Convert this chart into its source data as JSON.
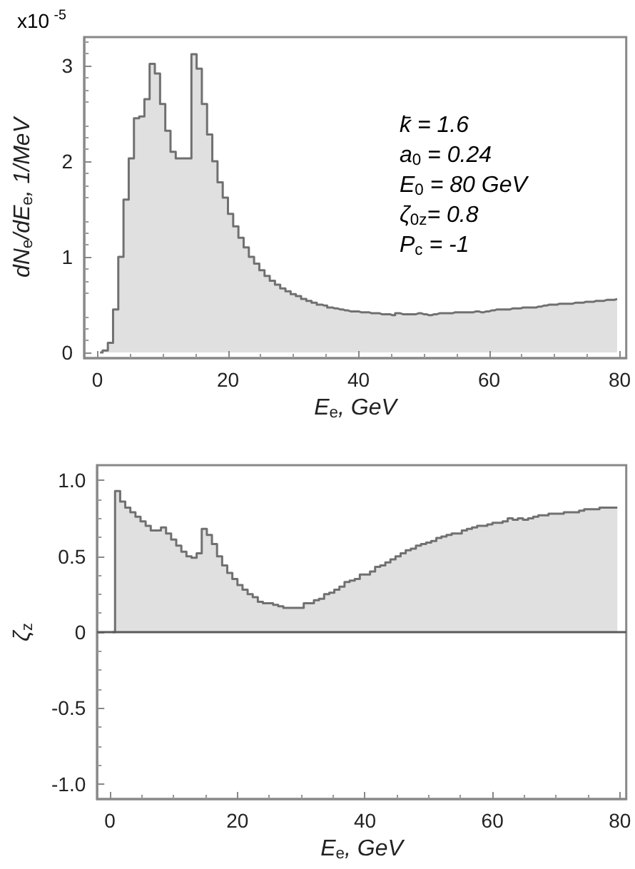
{
  "chart_data": [
    {
      "type": "step",
      "xlabel": "E$_{e}$, GeV",
      "ylabel": "dN$_{e}$/dE$_{e}$, 1/MeV",
      "color": "#707070",
      "annotations": [
        "x10$^{-5}$",
        "k̄ = 1.6",
        "a$_{0}$ = 0.24",
        "E$_{0}$ = 80 GeV",
        "ζ$_{0z}$= 0.8",
        "P$_{c}$ = -1"
      ],
      "x": [
        0.4,
        1.2,
        2,
        2.8,
        3.6,
        4.4,
        5.2,
        6,
        6.8,
        7.6,
        8.4,
        9.2,
        10,
        10.8,
        11.6,
        12.4,
        13.2,
        14,
        14.8,
        15.6,
        16.4,
        17.2,
        18,
        18.8,
        19.6,
        20.4,
        21.2,
        22,
        22.8,
        23.6,
        24.4,
        25.2,
        26,
        26.8,
        27.6,
        28.4,
        29.2,
        30,
        30.8,
        31.6,
        32.4,
        33.2,
        34,
        34.8,
        35.6,
        36.4,
        37.2,
        38,
        38.8,
        39.6,
        40.4,
        41.2,
        42,
        42.8,
        43.6,
        44.4,
        45.2,
        46,
        46.8,
        47.6,
        48.4,
        49.2,
        50,
        50.8,
        51.6,
        52.4,
        53.2,
        54,
        54.8,
        55.6,
        56.4,
        57.2,
        58,
        58.8,
        59.6,
        60.4,
        61.2,
        62,
        62.8,
        63.6,
        64.4,
        65.2,
        66,
        66.8,
        67.6,
        68.4,
        69.2,
        70,
        70.8,
        71.6,
        72.4,
        73.2,
        74,
        74.8,
        75.6,
        76.4,
        77.2,
        78,
        78.8,
        79.6
      ],
      "values": [
        0,
        0.02,
        0.1,
        0.45,
        1.0,
        1.6,
        2.03,
        2.45,
        2.47,
        2.65,
        3.02,
        2.92,
        2.6,
        2.32,
        2.1,
        2.03,
        2.03,
        2.03,
        3.12,
        2.97,
        2.6,
        2.28,
        2.0,
        1.78,
        1.62,
        1.45,
        1.32,
        1.2,
        1.1,
        1.0,
        0.93,
        0.86,
        0.8,
        0.75,
        0.71,
        0.67,
        0.64,
        0.61,
        0.59,
        0.56,
        0.54,
        0.52,
        0.5,
        0.49,
        0.47,
        0.46,
        0.45,
        0.44,
        0.43,
        0.43,
        0.42,
        0.42,
        0.41,
        0.41,
        0.4,
        0.4,
        0.39,
        0.41,
        0.4,
        0.4,
        0.4,
        0.41,
        0.4,
        0.39,
        0.4,
        0.41,
        0.41,
        0.41,
        0.42,
        0.42,
        0.42,
        0.42,
        0.43,
        0.42,
        0.43,
        0.44,
        0.45,
        0.45,
        0.45,
        0.46,
        0.46,
        0.47,
        0.47,
        0.47,
        0.48,
        0.49,
        0.5,
        0.5,
        0.51,
        0.51,
        0.51,
        0.52,
        0.52,
        0.53,
        0.53,
        0.54,
        0.54,
        0.55,
        0.55,
        0.56
      ],
      "xlim": [
        -2,
        81
      ],
      "xticks": [
        0,
        20,
        40,
        60,
        80
      ],
      "ylim": [
        -0.06,
        3.3
      ],
      "yticks": [
        0,
        1,
        2,
        3
      ]
    },
    {
      "type": "step",
      "xlabel": "E$_{e}$, GeV",
      "ylabel": "ζ$_{z}$",
      "color": "#707070",
      "x": [
        0.4,
        1.2,
        2,
        2.8,
        3.6,
        4.4,
        5.2,
        6,
        6.8,
        7.6,
        8.4,
        9.2,
        10,
        10.8,
        11.6,
        12.4,
        13.2,
        14,
        14.8,
        15.6,
        16.4,
        17.2,
        18,
        18.8,
        19.6,
        20.4,
        21.2,
        22,
        22.8,
        23.6,
        24.4,
        25.2,
        26,
        26.8,
        27.6,
        28.4,
        29.2,
        30,
        30.8,
        31.6,
        32.4,
        33.2,
        34,
        34.8,
        35.6,
        36.4,
        37.2,
        38,
        38.8,
        39.6,
        40.4,
        41.2,
        42,
        42.8,
        43.6,
        44.4,
        45.2,
        46,
        46.8,
        47.6,
        48.4,
        49.2,
        50,
        50.8,
        51.6,
        52.4,
        53.2,
        54,
        54.8,
        55.6,
        56.4,
        57.2,
        58,
        58.8,
        59.6,
        60.4,
        61.2,
        62,
        62.8,
        63.6,
        64.4,
        65.2,
        66,
        66.8,
        67.6,
        68.4,
        69.2,
        70,
        70.8,
        71.6,
        72.4,
        73.2,
        74,
        74.8,
        75.6,
        76.4,
        77.2,
        78,
        78.8,
        79.6
      ],
      "values": [
        0,
        0.93,
        0.86,
        0.82,
        0.79,
        0.76,
        0.73,
        0.7,
        0.67,
        0.67,
        0.69,
        0.65,
        0.61,
        0.57,
        0.53,
        0.5,
        0.49,
        0.52,
        0.68,
        0.64,
        0.58,
        0.5,
        0.44,
        0.39,
        0.35,
        0.31,
        0.28,
        0.25,
        0.23,
        0.2,
        0.19,
        0.19,
        0.18,
        0.17,
        0.16,
        0.16,
        0.16,
        0.16,
        0.19,
        0.19,
        0.21,
        0.22,
        0.25,
        0.26,
        0.28,
        0.3,
        0.33,
        0.34,
        0.35,
        0.38,
        0.38,
        0.4,
        0.43,
        0.44,
        0.46,
        0.48,
        0.5,
        0.52,
        0.54,
        0.55,
        0.57,
        0.58,
        0.59,
        0.6,
        0.62,
        0.63,
        0.64,
        0.65,
        0.65,
        0.67,
        0.68,
        0.69,
        0.7,
        0.7,
        0.71,
        0.72,
        0.72,
        0.73,
        0.75,
        0.74,
        0.75,
        0.74,
        0.75,
        0.76,
        0.77,
        0.77,
        0.78,
        0.78,
        0.78,
        0.79,
        0.79,
        0.79,
        0.8,
        0.81,
        0.81,
        0.81,
        0.82,
        0.82,
        0.82,
        0.82
      ],
      "xlim": [
        -2,
        81
      ],
      "xticks": [
        0,
        20,
        40,
        60,
        80
      ],
      "ylim": [
        -1.1,
        1.1
      ],
      "yticks": [
        {
          "value": -1,
          "label": "-1.0"
        },
        {
          "value": -0.5,
          "label": "-0.5"
        },
        0,
        {
          "value": 0.5,
          "label": "0.5"
        },
        {
          "value": 1,
          "label": "1.0"
        }
      ],
      "ref_lines": [
        {
          "axis": "y",
          "value": 0,
          "color": "#5a5a5a"
        }
      ]
    }
  ]
}
